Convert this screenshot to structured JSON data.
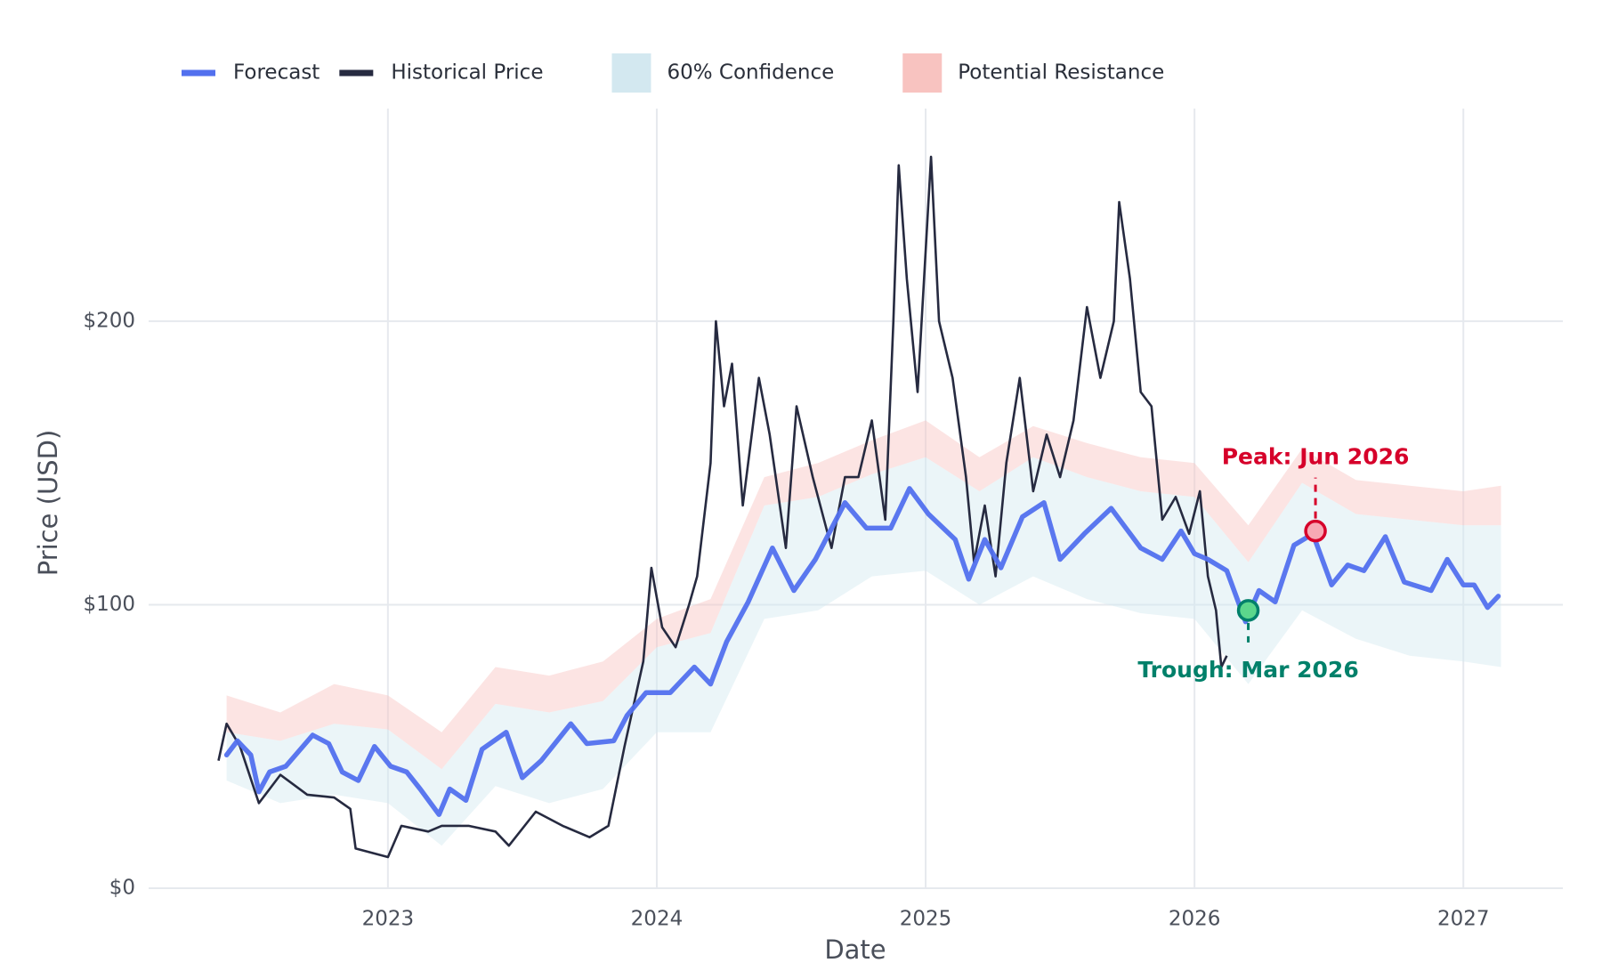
{
  "chart_data": {
    "type": "line",
    "x_label": "Date",
    "y_label": "Price (USD)",
    "xlim": [
      2022.11,
      2027.37
    ],
    "xticks": [
      2023,
      2024,
      2025,
      2026,
      2027
    ],
    "ylim": [
      0,
      275
    ],
    "yticks": [
      {
        "value": 0,
        "label": "$0"
      },
      {
        "value": 100,
        "label": "$100"
      },
      {
        "value": 200,
        "label": "$200"
      }
    ],
    "grid": true,
    "legend": "top-left",
    "series": [
      {
        "name": "Forecast",
        "color": "#5270ee",
        "x": [
          2022.4,
          2022.44,
          2022.49,
          2022.52,
          2022.56,
          2022.62,
          2022.72,
          2022.78,
          2022.83,
          2022.89,
          2022.95,
          2023.01,
          2023.07,
          2023.12,
          2023.19,
          2023.23,
          2023.29,
          2023.35,
          2023.44,
          2023.5,
          2023.57,
          2023.68,
          2023.74,
          2023.84,
          2023.89,
          2023.96,
          2024.05,
          2024.14,
          2024.2,
          2024.26,
          2024.34,
          2024.43,
          2024.51,
          2024.59,
          2024.7,
          2024.78,
          2024.87,
          2024.94,
          2025.01,
          2025.11,
          2025.16,
          2025.22,
          2025.28,
          2025.36,
          2025.44,
          2025.5,
          2025.59,
          2025.69,
          2025.8,
          2025.88,
          2025.95,
          2026.0,
          2026.05,
          2026.12,
          2026.19,
          2026.24,
          2026.3,
          2026.37,
          2026.44,
          2026.51,
          2026.57,
          2026.63,
          2026.71,
          2026.78,
          2026.88,
          2026.94,
          2027.0,
          2027.04,
          2027.09,
          2027.13
        ],
        "values": [
          47,
          52,
          47,
          34,
          41,
          43,
          54,
          51,
          41,
          38,
          50,
          43,
          41,
          35,
          26,
          35,
          31,
          49,
          55,
          39,
          45,
          58,
          51,
          52,
          61,
          69,
          69,
          78,
          72,
          87,
          101,
          120,
          105,
          116,
          136,
          127,
          127,
          141,
          132,
          123,
          109,
          123,
          113,
          131,
          136,
          116,
          125,
          134,
          120,
          116,
          126,
          118,
          116,
          112,
          94,
          105,
          101,
          121,
          125,
          107,
          114,
          112,
          124,
          108,
          105,
          116,
          107,
          107,
          99,
          103
        ]
      },
      {
        "name": "Historical Price",
        "color": "#262a40",
        "x": [
          2022.37,
          2022.4,
          2022.45,
          2022.52,
          2022.6,
          2022.7,
          2022.8,
          2022.86,
          2022.88,
          2023.0,
          2023.05,
          2023.15,
          2023.2,
          2023.3,
          2023.4,
          2023.45,
          2023.55,
          2023.65,
          2023.75,
          2023.82,
          2023.88,
          2023.95,
          2023.98,
          2024.02,
          2024.07,
          2024.12,
          2024.15,
          2024.2,
          2024.22,
          2024.25,
          2024.28,
          2024.32,
          2024.38,
          2024.42,
          2024.48,
          2024.52,
          2024.58,
          2024.65,
          2024.7,
          2024.75,
          2024.8,
          2024.85,
          2024.88,
          2024.9,
          2024.93,
          2024.97,
          2025.02,
          2025.05,
          2025.1,
          2025.15,
          2025.18,
          2025.22,
          2025.26,
          2025.3,
          2025.35,
          2025.4,
          2025.45,
          2025.5,
          2025.55,
          2025.6,
          2025.65,
          2025.7,
          2025.72,
          2025.76,
          2025.8,
          2025.84,
          2025.88,
          2025.93,
          2025.98,
          2026.02,
          2026.05,
          2026.08,
          2026.1,
          2026.12
        ],
        "values": [
          45,
          58,
          50,
          30,
          40,
          33,
          32,
          28,
          14,
          11,
          22,
          20,
          22,
          22,
          20,
          15,
          27,
          22,
          18,
          22,
          50,
          80,
          113,
          92,
          85,
          100,
          110,
          150,
          200,
          170,
          185,
          135,
          180,
          160,
          120,
          170,
          145,
          120,
          145,
          145,
          165,
          130,
          200,
          255,
          215,
          175,
          258,
          200,
          180,
          145,
          115,
          135,
          110,
          150,
          180,
          140,
          160,
          145,
          165,
          205,
          180,
          200,
          242,
          215,
          175,
          170,
          130,
          138,
          125,
          140,
          110,
          98,
          78,
          82
        ]
      },
      {
        "name": "60% Confidence",
        "color": "#d3e8f0",
        "x": [
          2022.4,
          2022.6,
          2022.8,
          2023.0,
          2023.2,
          2023.4,
          2023.6,
          2023.8,
          2024.0,
          2024.2,
          2024.4,
          2024.6,
          2024.8,
          2025.0,
          2025.2,
          2025.4,
          2025.6,
          2025.8,
          2026.0,
          2026.2,
          2026.4,
          2026.6,
          2026.8,
          2027.0,
          2027.14
        ],
        "lower": [
          38,
          30,
          33,
          30,
          15,
          36,
          30,
          35,
          55,
          55,
          95,
          98,
          110,
          112,
          100,
          110,
          102,
          97,
          95,
          72,
          98,
          88,
          82,
          80,
          78
        ],
        "upper": [
          55,
          52,
          58,
          56,
          42,
          65,
          62,
          66,
          85,
          90,
          135,
          138,
          146,
          152,
          140,
          152,
          145,
          140,
          138,
          115,
          143,
          132,
          130,
          128,
          128
        ]
      },
      {
        "name": "Potential Resistance",
        "color": "#f8c3c0",
        "x": [
          2022.4,
          2022.6,
          2022.8,
          2023.0,
          2023.2,
          2023.4,
          2023.6,
          2023.8,
          2024.0,
          2024.2,
          2024.4,
          2024.6,
          2024.8,
          2025.0,
          2025.2,
          2025.4,
          2025.6,
          2025.8,
          2026.0,
          2026.2,
          2026.4,
          2026.6,
          2026.8,
          2027.0,
          2027.14
        ],
        "upper": [
          68,
          62,
          72,
          68,
          55,
          78,
          75,
          80,
          95,
          102,
          145,
          150,
          158,
          165,
          152,
          163,
          157,
          152,
          150,
          128,
          155,
          144,
          142,
          140,
          142
        ]
      }
    ],
    "annotations": [
      {
        "text": "Peak: Jun 2026",
        "x": 2026.45,
        "y": 126,
        "color": "#d6002a",
        "marker_fill": "#f7a8b4"
      },
      {
        "text": "Trough: Mar 2026",
        "x": 2026.2,
        "y": 98,
        "color": "#00806a",
        "marker_fill": "#5cd68c"
      }
    ]
  }
}
